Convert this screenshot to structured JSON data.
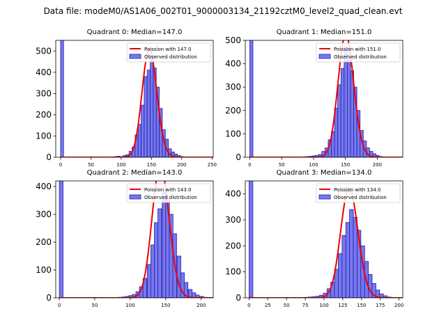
{
  "figure": {
    "suptitle": "Data file: modeM0/AS1A06_002T01_9000003134_21192cztM0_level2_quad_clean.evt"
  },
  "legend": {
    "observed": "Observed distribution"
  },
  "colors": {
    "bar_fill": "#7777ee",
    "bar_edge": "#2020a8",
    "poisson": "#ee0000"
  },
  "chart_data": [
    {
      "type": "bar",
      "title": "Quadrant 0: Median=147.0",
      "poisson_label": "Poission with 147.0",
      "median": 147.0,
      "xlim": [
        -8,
        252
      ],
      "ylim": [
        0,
        550
      ],
      "xticks": [
        0,
        50,
        100,
        150,
        200,
        250
      ],
      "yticks": [
        0,
        100,
        200,
        300,
        400,
        500
      ],
      "bin_width": 4.9,
      "bins": [
        [
          0,
          1000
        ],
        [
          78,
          2
        ],
        [
          83,
          1
        ],
        [
          88,
          3
        ],
        [
          93,
          5
        ],
        [
          98,
          3
        ],
        [
          103,
          8
        ],
        [
          108,
          12
        ],
        [
          113,
          28
        ],
        [
          118,
          48
        ],
        [
          123,
          105
        ],
        [
          128,
          155
        ],
        [
          133,
          245
        ],
        [
          138,
          380
        ],
        [
          143,
          410
        ],
        [
          148,
          480
        ],
        [
          153,
          420
        ],
        [
          158,
          330
        ],
        [
          163,
          230
        ],
        [
          168,
          130
        ],
        [
          173,
          85
        ],
        [
          178,
          40
        ],
        [
          183,
          25
        ],
        [
          188,
          15
        ],
        [
          193,
          8
        ],
        [
          198,
          3
        ]
      ]
    },
    {
      "type": "bar",
      "title": "Quadrant 1: Median=151.0",
      "poisson_label": "Poission with 151.0",
      "median": 151.0,
      "xlim": [
        -7,
        240
      ],
      "ylim": [
        0,
        500
      ],
      "xticks": [
        0,
        50,
        100,
        150,
        200
      ],
      "yticks": [
        0,
        100,
        200,
        300,
        400,
        500
      ],
      "bin_width": 5.0,
      "bins": [
        [
          0,
          1000
        ],
        [
          83,
          2
        ],
        [
          88,
          3
        ],
        [
          93,
          4
        ],
        [
          98,
          6
        ],
        [
          103,
          8
        ],
        [
          108,
          12
        ],
        [
          113,
          25
        ],
        [
          118,
          40
        ],
        [
          123,
          75
        ],
        [
          128,
          110
        ],
        [
          133,
          210
        ],
        [
          138,
          310
        ],
        [
          143,
          380
        ],
        [
          148,
          470
        ],
        [
          153,
          440
        ],
        [
          158,
          370
        ],
        [
          163,
          300
        ],
        [
          168,
          200
        ],
        [
          173,
          115
        ],
        [
          178,
          70
        ],
        [
          183,
          40
        ],
        [
          188,
          25
        ],
        [
          193,
          15
        ],
        [
          198,
          8
        ],
        [
          203,
          3
        ]
      ]
    },
    {
      "type": "bar",
      "title": "Quadrant 2: Median=143.0",
      "poisson_label": "Poission with 143.0",
      "median": 143.0,
      "xlim": [
        -5,
        217
      ],
      "ylim": [
        0,
        420
      ],
      "xticks": [
        0,
        50,
        100,
        150,
        200
      ],
      "yticks": [
        0,
        100,
        200,
        300,
        400
      ],
      "bin_width": 5.3,
      "bins": [
        [
          0,
          1000
        ],
        [
          82,
          2
        ],
        [
          88,
          3
        ],
        [
          93,
          5
        ],
        [
          98,
          8
        ],
        [
          103,
          12
        ],
        [
          108,
          22
        ],
        [
          113,
          40
        ],
        [
          118,
          70
        ],
        [
          124,
          120
        ],
        [
          129,
          190
        ],
        [
          134,
          270
        ],
        [
          139,
          320
        ],
        [
          145,
          380
        ],
        [
          150,
          360
        ],
        [
          155,
          300
        ],
        [
          160,
          230
        ],
        [
          166,
          150
        ],
        [
          171,
          90
        ],
        [
          176,
          55
        ],
        [
          182,
          30
        ],
        [
          187,
          18
        ],
        [
          192,
          10
        ],
        [
          198,
          5
        ],
        [
          203,
          2
        ]
      ]
    },
    {
      "type": "bar",
      "title": "Quadrant 3: Median=134.0",
      "poisson_label": "Poission with 134.0",
      "median": 134.0,
      "xlim": [
        -5,
        205
      ],
      "ylim": [
        0,
        450
      ],
      "xticks": [
        0,
        25,
        50,
        75,
        100,
        125,
        150,
        175,
        200
      ],
      "yticks": [
        0,
        100,
        200,
        300,
        400
      ],
      "bin_width": 5.1,
      "bins": [
        [
          0,
          1000
        ],
        [
          74,
          2
        ],
        [
          79,
          3
        ],
        [
          84,
          4
        ],
        [
          89,
          6
        ],
        [
          94,
          10
        ],
        [
          99,
          18
        ],
        [
          104,
          35
        ],
        [
          109,
          60
        ],
        [
          114,
          110
        ],
        [
          119,
          170
        ],
        [
          124,
          240
        ],
        [
          129,
          290
        ],
        [
          134,
          340
        ],
        [
          139,
          310
        ],
        [
          144,
          260
        ],
        [
          149,
          200
        ],
        [
          154,
          140
        ],
        [
          159,
          90
        ],
        [
          164,
          55
        ],
        [
          169,
          30
        ],
        [
          174,
          15
        ],
        [
          179,
          8
        ],
        [
          184,
          3
        ]
      ]
    }
  ]
}
